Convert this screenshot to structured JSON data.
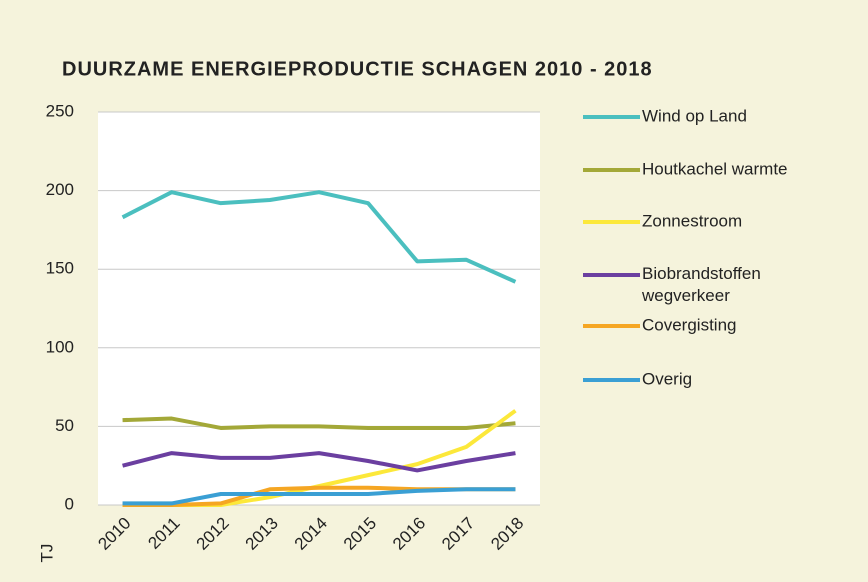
{
  "chart_data": {
    "type": "line",
    "title": "DUURZAME ENERGIEPRODUCTIE SCHAGEN 2010 - 2018",
    "y_label": "TJ",
    "categories": [
      "2010",
      "2011",
      "2012",
      "2013",
      "2014",
      "2015",
      "2016",
      "2017",
      "2018"
    ],
    "series": [
      {
        "name": "Wind op Land",
        "color": "#4bbfbf",
        "values": [
          183,
          199,
          192,
          194,
          199,
          192,
          155,
          156,
          142
        ]
      },
      {
        "name": "Houtkachel warmte",
        "color": "#a3a838",
        "values": [
          54,
          55,
          49,
          50,
          50,
          49,
          49,
          49,
          52
        ]
      },
      {
        "name": "Zonnestroom",
        "color": "#fce83a",
        "values": [
          0,
          0,
          0,
          5,
          12,
          19,
          26,
          37,
          60
        ]
      },
      {
        "name": "Biobrandstoffen wegverkeer",
        "color": "#6b3fa0",
        "values": [
          25,
          33,
          30,
          30,
          33,
          28,
          22,
          28,
          33
        ]
      },
      {
        "name": "Covergisting",
        "color": "#f5a623",
        "values": [
          0,
          0,
          1,
          10,
          11,
          11,
          10,
          10,
          10
        ]
      },
      {
        "name": "Overig",
        "color": "#3a9fd4",
        "values": [
          1,
          1,
          7,
          7,
          7,
          7,
          9,
          10,
          10
        ]
      }
    ],
    "ylim": [
      0,
      250
    ],
    "yticks": [
      0,
      50,
      100,
      150,
      200,
      250
    ],
    "grid": true,
    "legend": "right"
  }
}
